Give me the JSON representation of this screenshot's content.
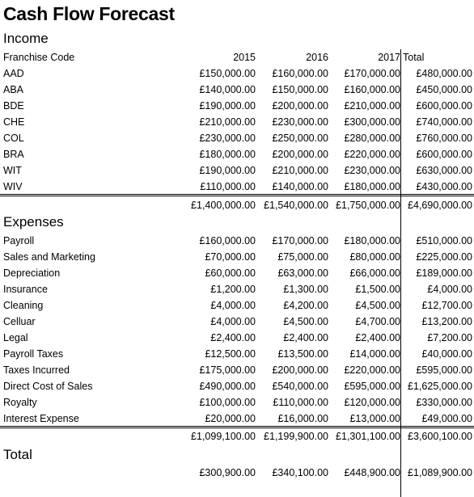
{
  "title": "Cash Flow Forecast",
  "income": {
    "heading": "Income",
    "header": {
      "label": "Franchise Code",
      "y2015": "2015",
      "y2016": "2016",
      "y2017": "2017",
      "total": "Total"
    },
    "rows": [
      {
        "code": "AAD",
        "y2015": "£150,000.00",
        "y2016": "£160,000.00",
        "y2017": "£170,000.00",
        "total": "£480,000.00"
      },
      {
        "code": "ABA",
        "y2015": "£140,000.00",
        "y2016": "£150,000.00",
        "y2017": "£160,000.00",
        "total": "£450,000.00"
      },
      {
        "code": "BDE",
        "y2015": "£190,000.00",
        "y2016": "£200,000.00",
        "y2017": "£210,000.00",
        "total": "£600,000.00"
      },
      {
        "code": "CHE",
        "y2015": "£210,000.00",
        "y2016": "£230,000.00",
        "y2017": "£300,000.00",
        "total": "£740,000.00"
      },
      {
        "code": "COL",
        "y2015": "£230,000.00",
        "y2016": "£250,000.00",
        "y2017": "£280,000.00",
        "total": "£760,000.00"
      },
      {
        "code": "BRA",
        "y2015": "£180,000.00",
        "y2016": "£200,000.00",
        "y2017": "£220,000.00",
        "total": "£600,000.00"
      },
      {
        "code": "WIT",
        "y2015": "£190,000.00",
        "y2016": "£210,000.00",
        "y2017": "£230,000.00",
        "total": "£630,000.00"
      },
      {
        "code": "WIV",
        "y2015": "£110,000.00",
        "y2016": "£140,000.00",
        "y2017": "£180,000.00",
        "total": "£430,000.00"
      }
    ],
    "totals": {
      "y2015": "£1,400,000.00",
      "y2016": "£1,540,000.00",
      "y2017": "£1,750,000.00",
      "total": "£4,690,000.00"
    }
  },
  "expenses": {
    "heading": "Expenses",
    "rows": [
      {
        "label": "Payroll",
        "y2015": "£160,000.00",
        "y2016": "£170,000.00",
        "y2017": "£180,000.00",
        "total": "£510,000.00"
      },
      {
        "label": "Sales and Marketing",
        "y2015": "£70,000.00",
        "y2016": "£75,000.00",
        "y2017": "£80,000.00",
        "total": "£225,000.00"
      },
      {
        "label": "Depreciation",
        "y2015": "£60,000.00",
        "y2016": "£63,000.00",
        "y2017": "£66,000.00",
        "total": "£189,000.00"
      },
      {
        "label": "Insurance",
        "y2015": "£1,200.00",
        "y2016": "£1,300.00",
        "y2017": "£1,500.00",
        "total": "£4,000.00"
      },
      {
        "label": "Cleaning",
        "y2015": "£4,000.00",
        "y2016": "£4,200.00",
        "y2017": "£4,500.00",
        "total": "£12,700.00"
      },
      {
        "label": "Celluar",
        "y2015": "£4,000.00",
        "y2016": "£4,500.00",
        "y2017": "£4,700.00",
        "total": "£13,200.00"
      },
      {
        "label": "Legal",
        "y2015": "£2,400.00",
        "y2016": "£2,400.00",
        "y2017": "£2,400.00",
        "total": "£7,200.00"
      },
      {
        "label": "Payroll Taxes",
        "y2015": "£12,500.00",
        "y2016": "£13,500.00",
        "y2017": "£14,000.00",
        "total": "£40,000.00"
      },
      {
        "label": "Taxes Incurred",
        "y2015": "£175,000.00",
        "y2016": "£200,000.00",
        "y2017": "£220,000.00",
        "total": "£595,000.00"
      },
      {
        "label": "Direct Cost of Sales",
        "y2015": "£490,000.00",
        "y2016": "£540,000.00",
        "y2017": "£595,000.00",
        "total": "£1,625,000.00"
      },
      {
        "label": "Royalty",
        "y2015": "£100,000.00",
        "y2016": "£110,000.00",
        "y2017": "£120,000.00",
        "total": "£330,000.00"
      },
      {
        "label": "Interest Expense",
        "y2015": "£20,000.00",
        "y2016": "£16,000.00",
        "y2017": "£13,000.00",
        "total": "£49,000.00"
      }
    ],
    "totals": {
      "y2015": "£1,099,100.00",
      "y2016": "£1,199,900.00",
      "y2017": "£1,301,100.00",
      "total": "£3,600,100.00"
    }
  },
  "net": {
    "heading": "Total",
    "y2015": "£300,900.00",
    "y2016": "£340,100.00",
    "y2017": "£448,900.00",
    "total": "£1,089,900.00"
  }
}
